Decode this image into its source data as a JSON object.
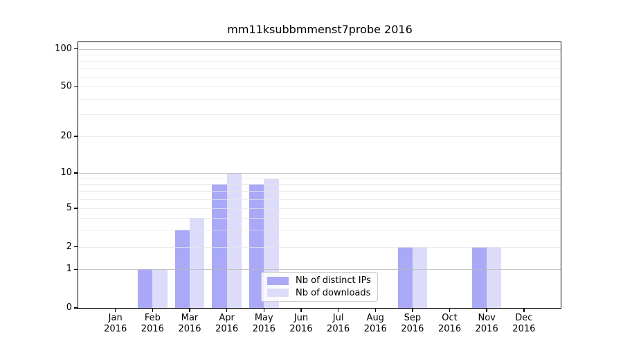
{
  "title": "mm11ksubbmmenst7probe 2016",
  "colors": {
    "distinct_ips": "#a9a9f7",
    "downloads": "#dcdcfa",
    "grid_major": "rgba(185,185,185,0.8)",
    "grid_minor": "rgba(229,229,229,0.75)",
    "axis": "#000000",
    "legend_border": "#cccccc"
  },
  "y_axis": {
    "tick_labels": [
      "0",
      "1",
      "2",
      "5",
      "10",
      "20",
      "50",
      "100"
    ],
    "tick_values": [
      0,
      1,
      2,
      5,
      10,
      20,
      50,
      100
    ],
    "major_grid_values": [
      1,
      10,
      100
    ],
    "minor_grid_values": [
      2,
      3,
      4,
      5,
      6,
      7,
      8,
      9,
      20,
      30,
      40,
      50,
      60,
      70,
      80,
      90
    ]
  },
  "x_axis": {
    "months": [
      {
        "month": "Jan",
        "year": "2016"
      },
      {
        "month": "Feb",
        "year": "2016"
      },
      {
        "month": "Mar",
        "year": "2016"
      },
      {
        "month": "Apr",
        "year": "2016"
      },
      {
        "month": "May",
        "year": "2016"
      },
      {
        "month": "Jun",
        "year": "2016"
      },
      {
        "month": "Jul",
        "year": "2016"
      },
      {
        "month": "Aug",
        "year": "2016"
      },
      {
        "month": "Sep",
        "year": "2016"
      },
      {
        "month": "Oct",
        "year": "2016"
      },
      {
        "month": "Nov",
        "year": "2016"
      },
      {
        "month": "Dec",
        "year": "2016"
      }
    ]
  },
  "legend": {
    "items": [
      {
        "label": "Nb of distinct IPs",
        "series_key": "distinct_ips"
      },
      {
        "label": "Nb of downloads",
        "series_key": "downloads"
      }
    ]
  },
  "chart_data": {
    "type": "bar",
    "title": "mm11ksubbmmenst7probe 2016",
    "categories": [
      "Jan 2016",
      "Feb 2016",
      "Mar 2016",
      "Apr 2016",
      "May 2016",
      "Jun 2016",
      "Jul 2016",
      "Aug 2016",
      "Sep 2016",
      "Oct 2016",
      "Nov 2016",
      "Dec 2016"
    ],
    "series": [
      {
        "name": "Nb of distinct IPs",
        "color": "#a9a9f7",
        "values": [
          0,
          1,
          3,
          8,
          8,
          0,
          0,
          0,
          2,
          0,
          2,
          0
        ]
      },
      {
        "name": "Nb of downloads",
        "color": "#dcdcfa",
        "values": [
          0,
          1,
          4,
          10,
          9,
          0,
          0,
          0,
          2,
          0,
          2,
          0
        ]
      }
    ],
    "xlabel": "",
    "ylabel": "",
    "yscale": "symlog",
    "yticks": [
      0,
      1,
      2,
      5,
      10,
      20,
      50,
      100
    ],
    "ylim": [
      0,
      113
    ],
    "grid": true,
    "legend_position": "lower center"
  }
}
